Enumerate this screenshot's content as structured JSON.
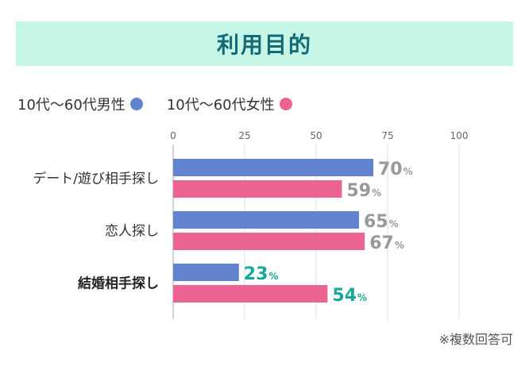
{
  "title": "利用目的",
  "footnote": "※複数回答可",
  "legend": [
    {
      "label": "10代〜60代男性",
      "color": "#6284cf"
    },
    {
      "label": "10代〜60代女性",
      "color": "#ec6494"
    }
  ],
  "chart_data": {
    "type": "bar",
    "orientation": "horizontal",
    "title": "利用目的",
    "categories": [
      "デート/遊び相手探し",
      "恋人探し",
      "結婚相手探し"
    ],
    "series": [
      {
        "name": "10代〜60代男性",
        "values": [
          70,
          65,
          23
        ],
        "color": "#6284cf"
      },
      {
        "name": "10代〜60代女性",
        "values": [
          59,
          67,
          54
        ],
        "color": "#ec6494"
      }
    ],
    "xlim": [
      0,
      100
    ],
    "xticks": [
      0,
      25,
      50,
      75,
      100
    ],
    "grid": true,
    "legend_position": "top-left",
    "value_unit": "%",
    "label_color_default": "#999999",
    "label_color_highlight": "#1aa89a",
    "highlight_category": "結婚相手探し"
  }
}
